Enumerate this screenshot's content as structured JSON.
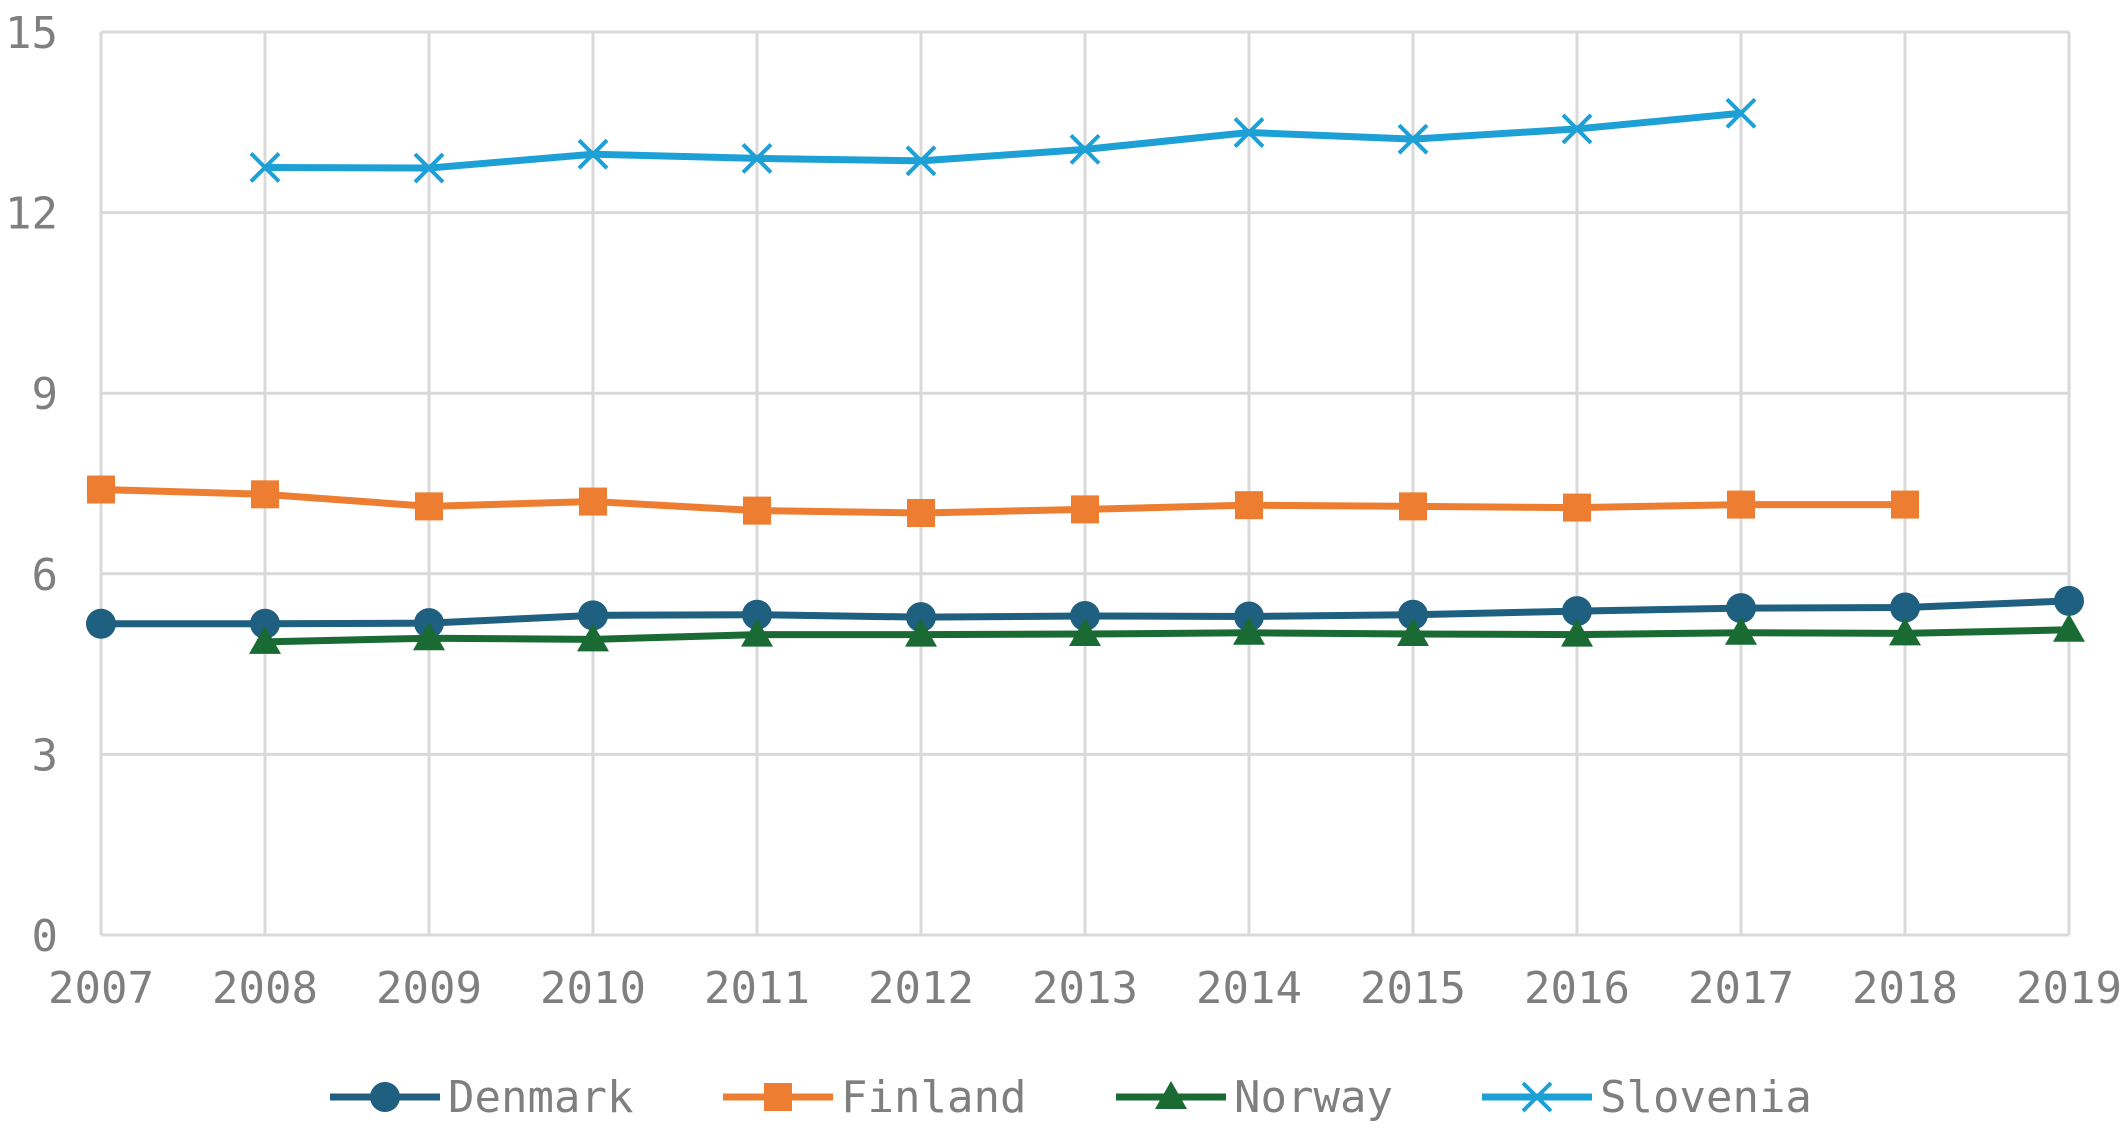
{
  "chart_data": {
    "type": "line",
    "title": "",
    "xlabel": "",
    "ylabel": "",
    "x": [
      "2007",
      "2008",
      "2009",
      "2010",
      "2011",
      "2012",
      "2013",
      "2014",
      "2015",
      "2016",
      "2017",
      "2018",
      "2019"
    ],
    "ylim": [
      0,
      15
    ],
    "yticks": [
      0,
      3,
      6,
      9,
      12,
      15
    ],
    "grid": true,
    "legend_position": "bottom",
    "series": [
      {
        "name": "Denmark",
        "color": "#1f5f7f",
        "marker": "circle",
        "values": [
          5.17,
          5.17,
          5.18,
          5.31,
          5.32,
          5.28,
          5.3,
          5.29,
          5.32,
          5.38,
          5.43,
          5.44,
          5.55
        ]
      },
      {
        "name": "Finland",
        "color": "#ed7d31",
        "marker": "square",
        "values": [
          7.4,
          7.32,
          7.12,
          7.2,
          7.05,
          7.01,
          7.07,
          7.14,
          7.12,
          7.1,
          7.15,
          7.15,
          null
        ]
      },
      {
        "name": "Norway",
        "color": "#196b33",
        "marker": "triangle",
        "values": [
          null,
          4.87,
          4.93,
          4.91,
          4.99,
          4.99,
          5.0,
          5.02,
          5.0,
          4.99,
          5.02,
          5.01,
          5.07
        ]
      },
      {
        "name": "Slovenia",
        "color": "#1da0d6",
        "marker": "x",
        "values": [
          null,
          12.75,
          12.74,
          12.97,
          12.9,
          12.86,
          13.05,
          13.33,
          13.22,
          13.39,
          13.65,
          null,
          null
        ]
      }
    ]
  }
}
